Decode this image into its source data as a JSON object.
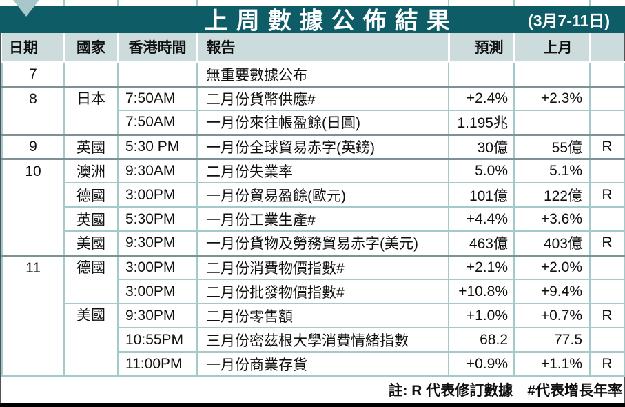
{
  "header": {
    "title": "上周數據公佈結果",
    "date_range": "(3月7-11日)"
  },
  "colors": {
    "accent": "#0d5c66",
    "header_bg": "#ccdcdc",
    "grid": "#a3c9cb",
    "grid_strong": "#7e9296",
    "triangle": "#a8c7ca",
    "frame": "#4d5557",
    "bottom_bar": "#000000"
  },
  "table": {
    "columns": [
      "日期",
      "國家",
      "香港時間",
      "報告",
      "預測",
      "上月",
      ""
    ],
    "column_names": [
      "date",
      "country",
      "hk-time",
      "report",
      "forecast",
      "previous-month",
      "revised-flag"
    ],
    "rows": [
      {
        "date": "7",
        "date_rowspan": 1,
        "country": "",
        "country_rowspan": 1,
        "time": "",
        "report": "無重要數據公布",
        "forecast": "",
        "prev": "",
        "revised": "",
        "group_start": true
      },
      {
        "date": "8",
        "date_rowspan": 2,
        "country": "日本",
        "country_rowspan": 2,
        "time": "7:50AM",
        "report": "二月份貨幣供應#",
        "forecast": "+2.4%",
        "prev": "+2.3%",
        "revised": "",
        "group_start": true
      },
      {
        "date": null,
        "country": null,
        "time": "7:50AM",
        "report": "一月份來往帳盈餘(日圓)",
        "forecast": "1.195兆",
        "prev": "",
        "revised": "",
        "group_start": false
      },
      {
        "date": "9",
        "date_rowspan": 1,
        "country": "英國",
        "country_rowspan": 1,
        "time": "5:30 PM",
        "report": "一月份全球貿易赤字(英鎊)",
        "forecast": "30億",
        "prev": "55億",
        "revised": "R",
        "group_start": true
      },
      {
        "date": "10",
        "date_rowspan": 4,
        "country": "澳洲",
        "country_rowspan": 1,
        "time": "9:30AM",
        "report": "二月份失業率",
        "forecast": "5.0%",
        "prev": "5.1%",
        "revised": "",
        "group_start": true
      },
      {
        "date": null,
        "country": "德國",
        "country_rowspan": 1,
        "time": "3:00PM",
        "report": "一月份貿易盈餘(歐元)",
        "forecast": "101億",
        "prev": "122億",
        "revised": "R",
        "group_start": false
      },
      {
        "date": null,
        "country": "英國",
        "country_rowspan": 1,
        "time": "5:30PM",
        "report": "一月份工業生產#",
        "forecast": "+4.4%",
        "prev": "+3.6%",
        "revised": "",
        "group_start": false
      },
      {
        "date": null,
        "country": "美國",
        "country_rowspan": 1,
        "time": "9:30PM",
        "report": "一月份貨物及勞務貿易赤字(美元)",
        "forecast": "463億",
        "prev": "403億",
        "revised": "R",
        "group_start": false
      },
      {
        "date": "11",
        "date_rowspan": 5,
        "country": "德國",
        "country_rowspan": 2,
        "time": "3:00PM",
        "report": "二月份消費物價指數#",
        "forecast": "+2.1%",
        "prev": "+2.0%",
        "revised": "",
        "group_start": true
      },
      {
        "date": null,
        "country": null,
        "time": "3:00PM",
        "report": "二月份批發物價指數#",
        "forecast": "+10.8%",
        "prev": "+9.4%",
        "revised": "",
        "group_start": false
      },
      {
        "date": null,
        "country": "美國",
        "country_rowspan": 3,
        "time": "9:30PM",
        "report": "二月份零售額",
        "forecast": "+1.0%",
        "prev": "+0.7%",
        "revised": "R",
        "group_start": false
      },
      {
        "date": null,
        "country": null,
        "time": "10:55PM",
        "report": "三月份密茲根大學消費情緒指數",
        "forecast": "68.2",
        "prev": "77.5",
        "revised": "",
        "group_start": false
      },
      {
        "date": null,
        "country": null,
        "time": "11:00PM",
        "report": "一月份商業存貨",
        "forecast": "+0.9%",
        "prev": "+1.1%",
        "revised": "R",
        "group_start": false
      }
    ]
  },
  "footer": {
    "note": "註: R 代表修訂數據　#代表增長年率"
  },
  "layout": {
    "column_ticks_x": [
      92,
      170,
      285,
      650,
      745,
      855
    ]
  }
}
